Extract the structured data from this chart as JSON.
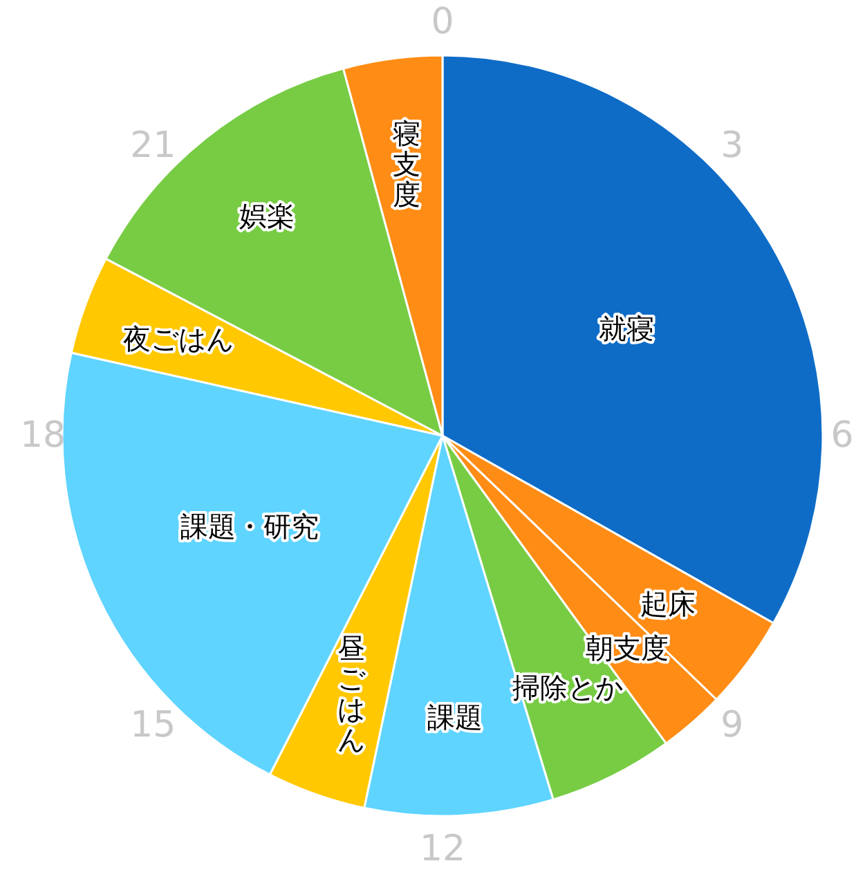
{
  "chart_data": {
    "type": "pie",
    "categories": [
      "就寝",
      "起床",
      "朝支度",
      "掃除とか",
      "課題",
      "昼ごはん",
      "課題・研究",
      "夜ごはん",
      "娯楽",
      "寝支度"
    ],
    "values": [
      33.2,
      4.0,
      2.8,
      5.3,
      8.0,
      4.2,
      21.0,
      4.2,
      13.1,
      4.2
    ],
    "colors": [
      "#0e6cc7",
      "#ff8c14",
      "#ff8c14",
      "#77cc44",
      "#5fd4ff",
      "#ffc800",
      "#5fd4ff",
      "#ffc800",
      "#77cc44",
      "#ff8c14"
    ],
    "annotations": [
      "0",
      "3",
      "6",
      "9",
      "12",
      "15",
      "18",
      "21"
    ]
  }
}
